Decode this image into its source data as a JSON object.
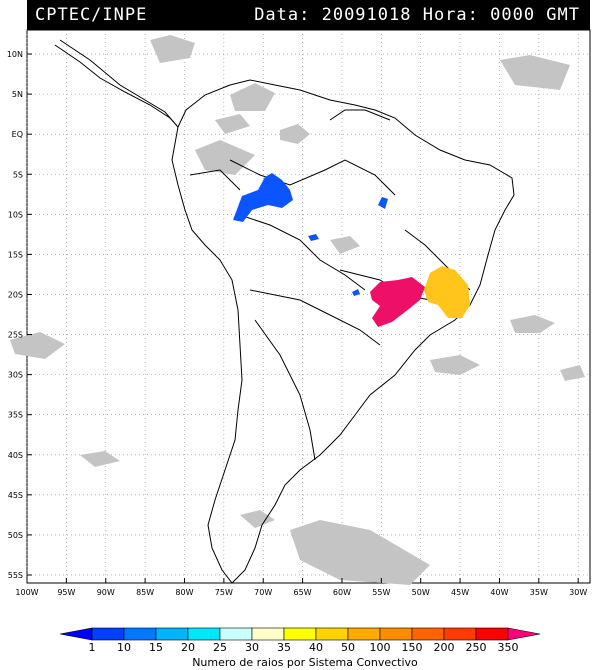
{
  "header": {
    "source": "CPTEC/INPE",
    "datetime": "Data: 20091018 Hora: 0000 GMT"
  },
  "map": {
    "lat_labels": [
      "10N",
      "5N",
      "EQ",
      "5S",
      "10S",
      "15S",
      "20S",
      "25S",
      "30S",
      "35S",
      "40S",
      "45S",
      "50S",
      "55S"
    ],
    "lon_labels": [
      "100W",
      "95W",
      "90W",
      "85W",
      "80W",
      "75W",
      "70W",
      "65W",
      "60W",
      "55W",
      "50W",
      "45W",
      "40W",
      "35W",
      "30W"
    ],
    "lat_values": [
      10,
      5,
      0,
      -5,
      -10,
      -15,
      -20,
      -25,
      -30,
      -35,
      -40,
      -45,
      -50,
      -55
    ],
    "lon_values": [
      -100,
      -95,
      -90,
      -85,
      -80,
      -75,
      -70,
      -65,
      -60,
      -55,
      -50,
      -45,
      -40,
      -35,
      -30
    ],
    "extent": {
      "lon_min": -100,
      "lon_max": -28.5,
      "lat_min": -56,
      "lat_max": 13
    },
    "grid": "dotted"
  },
  "colorbar": {
    "ticks": [
      "1",
      "10",
      "15",
      "20",
      "25",
      "30",
      "35",
      "40",
      "50",
      "100",
      "150",
      "200",
      "250",
      "350"
    ],
    "colors": [
      "#0000ff",
      "#0040ff",
      "#0078ff",
      "#00b4ff",
      "#00e6ff",
      "#c8ffff",
      "#ffffc8",
      "#ffff00",
      "#ffd200",
      "#ffaa00",
      "#ff8c00",
      "#ff6400",
      "#ff3c00",
      "#ff0000",
      "#ff0078"
    ],
    "label": "Numero de raios por Sistema Convectivo"
  },
  "legend_colors": {
    "blue": "#0a55ff",
    "magenta": "#ee1068",
    "yellow": "#ffc51a",
    "cloud_gray": "#c0c0c0"
  }
}
